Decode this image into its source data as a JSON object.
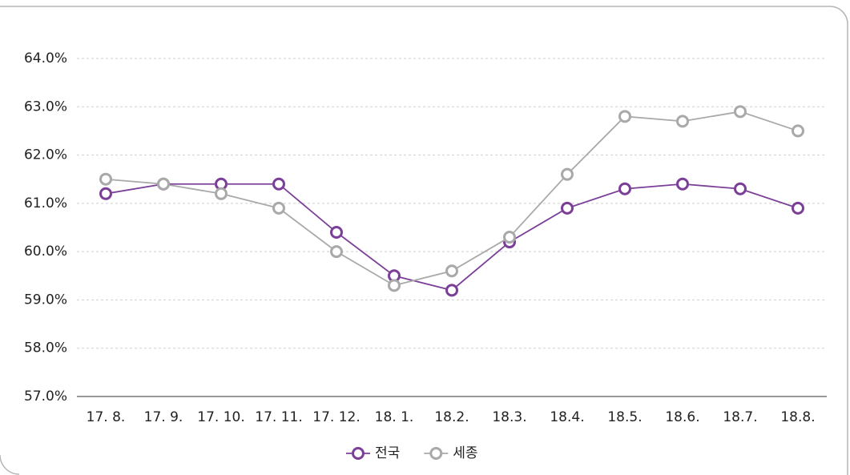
{
  "chart_data": {
    "type": "line",
    "categories": [
      "17. 8.",
      "17. 9.",
      "17. 10.",
      "17. 11.",
      "17. 12.",
      "18. 1.",
      "18.2.",
      "18.3.",
      "18.4.",
      "18.5.",
      "18.6.",
      "18.7.",
      "18.8."
    ],
    "series": [
      {
        "name": "전국",
        "color": "#7b3f98",
        "values": [
          61.2,
          61.4,
          61.4,
          61.4,
          60.4,
          59.5,
          59.2,
          60.2,
          60.9,
          61.3,
          61.4,
          61.3,
          60.9
        ]
      },
      {
        "name": "세종",
        "color": "#a9a9a9",
        "values": [
          61.5,
          61.4,
          61.2,
          60.9,
          60.0,
          59.3,
          59.6,
          60.3,
          61.6,
          62.8,
          62.7,
          62.9,
          62.5
        ]
      }
    ],
    "ylim": [
      57,
      64
    ],
    "yticks": [
      {
        "value": 57,
        "label": "57.0%"
      },
      {
        "value": 58,
        "label": "58.0%"
      },
      {
        "value": 59,
        "label": "59.0%"
      },
      {
        "value": 60,
        "label": "60.0%"
      },
      {
        "value": 61,
        "label": "61.0%"
      },
      {
        "value": 62,
        "label": "62.0%"
      },
      {
        "value": 63,
        "label": "63.0%"
      },
      {
        "value": 64,
        "label": "64.0%"
      }
    ],
    "grid": true,
    "legend": "bottom"
  }
}
